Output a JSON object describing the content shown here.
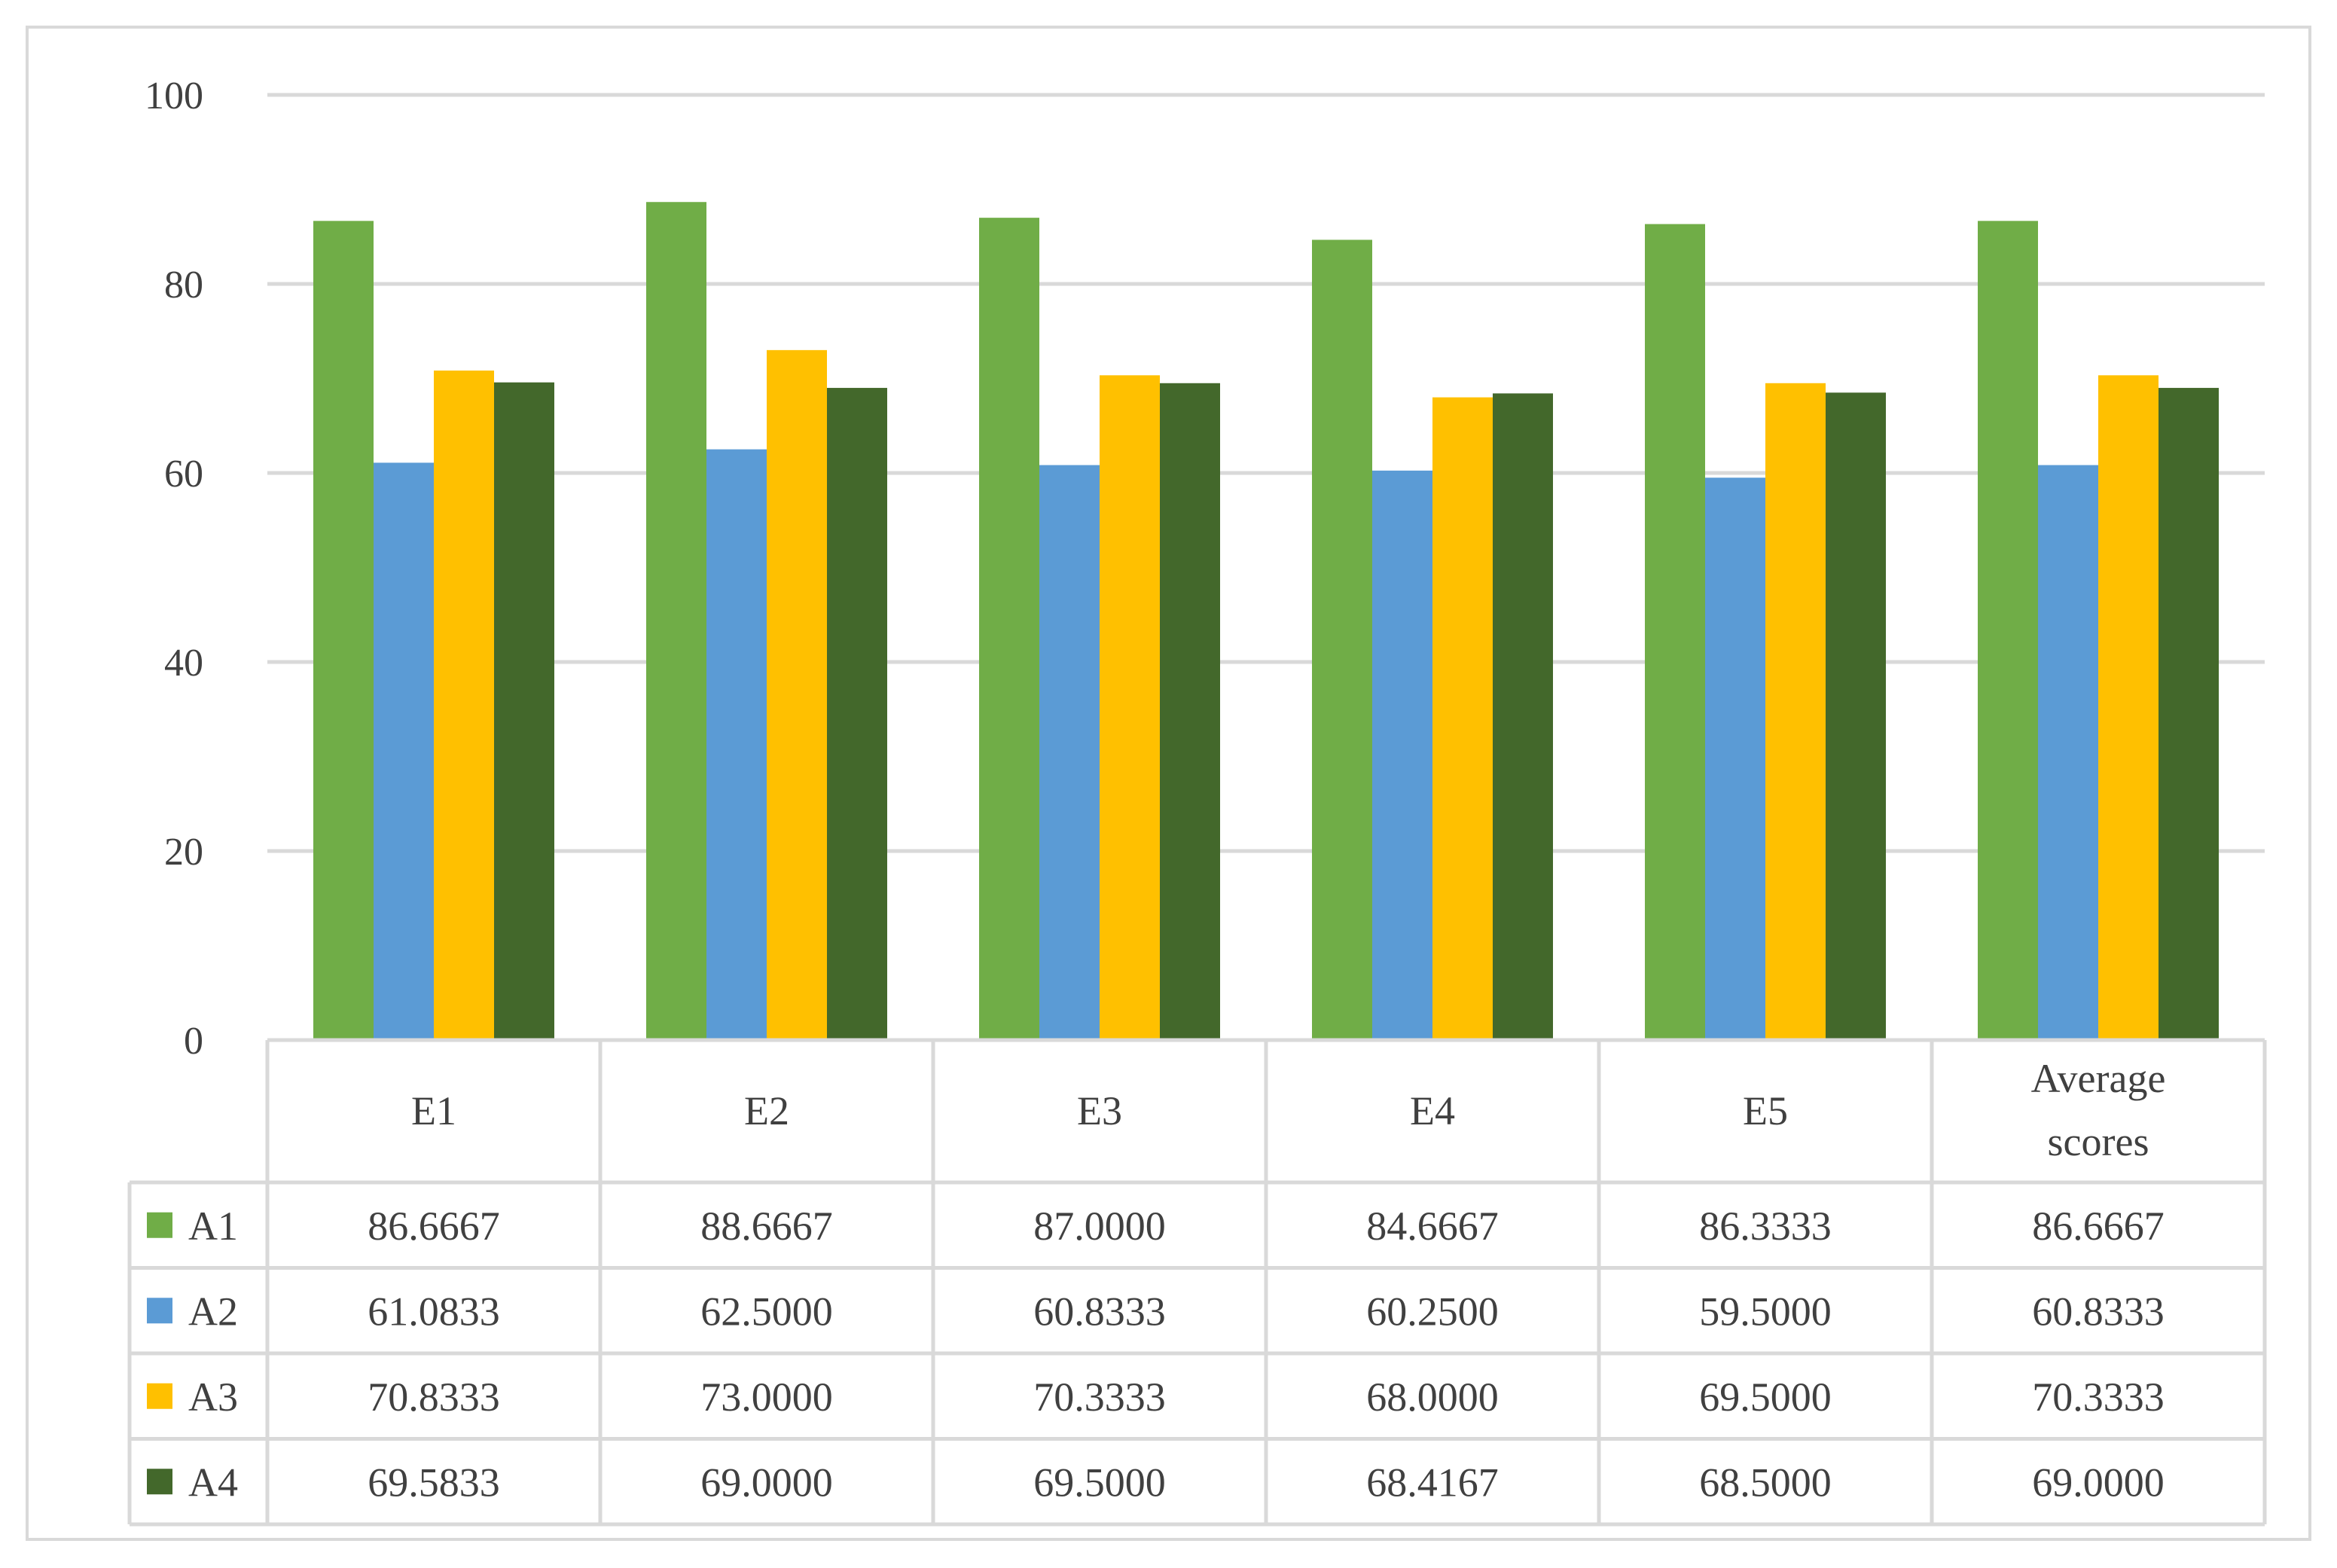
{
  "chart_data": {
    "type": "bar",
    "title": "",
    "xlabel": "",
    "ylabel": "",
    "ylim": [
      0,
      100
    ],
    "yticks": [
      0,
      20,
      40,
      60,
      80,
      100
    ],
    "grid": true,
    "legend": "data-table-left",
    "categories": [
      "E1",
      "E2",
      "E3",
      "E4",
      "E5",
      "Average scores"
    ],
    "series": [
      {
        "name": "A1",
        "color": "#70AD47",
        "values": [
          86.6667,
          88.6667,
          87.0,
          84.6667,
          86.3333,
          86.6667
        ],
        "labels": [
          "86.6667",
          "88.6667",
          "87.0000",
          "84.6667",
          "86.3333",
          "86.6667"
        ]
      },
      {
        "name": "A2",
        "color": "#5B9BD5",
        "values": [
          61.0833,
          62.5,
          60.8333,
          60.25,
          59.5,
          60.8333
        ],
        "labels": [
          "61.0833",
          "62.5000",
          "60.8333",
          "60.2500",
          "59.5000",
          "60.8333"
        ]
      },
      {
        "name": "A3",
        "color": "#FFC000",
        "values": [
          70.8333,
          73.0,
          70.3333,
          68.0,
          69.5,
          70.3333
        ],
        "labels": [
          "70.8333",
          "73.0000",
          "70.3333",
          "68.0000",
          "69.5000",
          "70.3333"
        ]
      },
      {
        "name": "A4",
        "color": "#43682B",
        "values": [
          69.5833,
          69.0,
          69.5,
          68.4167,
          68.5,
          69.0
        ],
        "labels": [
          "69.5833",
          "69.0000",
          "69.5000",
          "68.4167",
          "68.5000",
          "69.0000"
        ]
      }
    ]
  }
}
